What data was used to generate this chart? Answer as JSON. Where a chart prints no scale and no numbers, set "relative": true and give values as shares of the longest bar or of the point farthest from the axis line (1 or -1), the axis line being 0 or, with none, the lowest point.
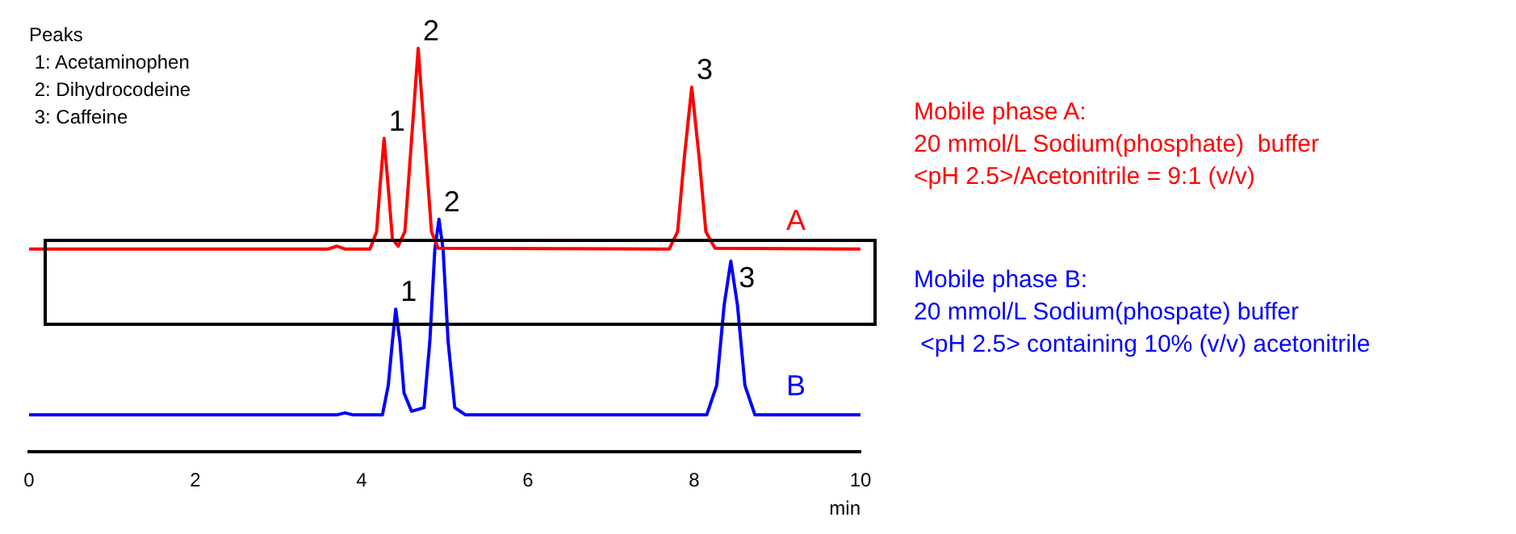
{
  "chart_data": {
    "type": "line",
    "relative": true,
    "xlabel": "min",
    "xlim": [
      0,
      10
    ],
    "xticks": [
      0,
      2,
      4,
      6,
      8,
      10
    ],
    "tick_labels": "x",
    "grid": false,
    "legend": false,
    "marker": "none",
    "line_style": "solid",
    "series": [
      {
        "name": "A",
        "color": "#ff0000",
        "x": [
          0,
          3.6,
          3.7,
          3.8,
          4.1,
          4.18,
          4.22,
          4.27,
          4.32,
          4.37,
          4.44,
          4.52,
          4.6,
          4.68,
          4.76,
          4.84,
          4.92,
          7.7,
          7.8,
          7.88,
          7.97,
          8.06,
          8.14,
          8.25,
          10
        ],
        "values": [
          0.503,
          0.503,
          0.51,
          0.503,
          0.503,
          0.546,
          0.655,
          0.777,
          0.655,
          0.528,
          0.51,
          0.546,
          0.773,
          1.0,
          0.773,
          0.546,
          0.505,
          0.503,
          0.546,
          0.728,
          0.904,
          0.728,
          0.546,
          0.505,
          0.503
        ]
      },
      {
        "name": "B",
        "color": "#0000ff",
        "x": [
          0,
          3.7,
          3.8,
          3.9,
          4.25,
          4.32,
          4.37,
          4.41,
          4.46,
          4.51,
          4.6,
          4.75,
          4.82,
          4.88,
          4.93,
          4.98,
          5.04,
          5.12,
          5.25,
          8.15,
          8.27,
          8.36,
          8.44,
          8.52,
          8.61,
          8.73,
          10
        ],
        "values": [
          0.092,
          0.092,
          0.097,
          0.092,
          0.092,
          0.165,
          0.274,
          0.354,
          0.274,
          0.146,
          0.101,
          0.11,
          0.274,
          0.501,
          0.577,
          0.501,
          0.274,
          0.11,
          0.092,
          0.092,
          0.165,
          0.364,
          0.473,
          0.364,
          0.165,
          0.092,
          0.092
        ]
      }
    ],
    "annotations": [
      "Peaks\n 1: Acetaminophen\n 2: Dihydrocodeine\n 3: Caffeine",
      "Mobile phase A:\n20 mmol/L Sodium(phosphate)  buffer\n<pH 2.5>/Acetonitrile = 9:1 (v/v)",
      "Mobile phase B:\n20 mmol/L Sodium(phospate) buffer\n <pH 2.5> containing 10% (v/v) acetonitrile",
      {
        "text": "1",
        "x": 4.27,
        "y": 0.777
      },
      {
        "text": "2",
        "x": 4.68,
        "y": 1.0
      },
      {
        "text": "3",
        "x": 7.97,
        "y": 0.904
      },
      {
        "text": "1",
        "x": 4.41,
        "y": 0.354
      },
      {
        "text": "2",
        "x": 4.93,
        "y": 0.577
      },
      {
        "text": "3",
        "x": 8.44,
        "y": 0.473
      }
    ]
  }
}
